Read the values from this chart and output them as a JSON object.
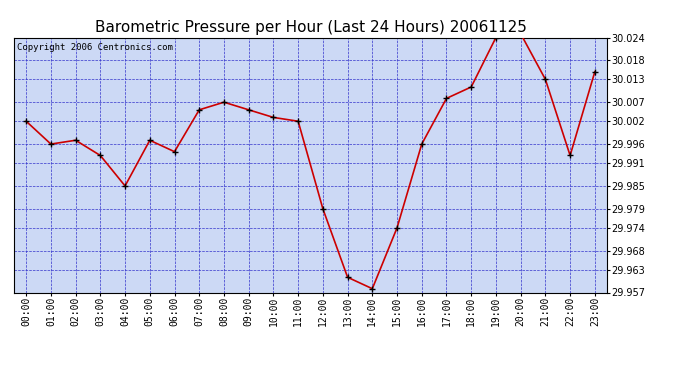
{
  "title": "Barometric Pressure per Hour (Last 24 Hours) 20061125",
  "copyright": "Copyright 2006 Centronics.com",
  "hours": [
    "00:00",
    "01:00",
    "02:00",
    "03:00",
    "04:00",
    "05:00",
    "06:00",
    "07:00",
    "08:00",
    "09:00",
    "10:00",
    "11:00",
    "12:00",
    "13:00",
    "14:00",
    "15:00",
    "16:00",
    "17:00",
    "18:00",
    "19:00",
    "20:00",
    "21:00",
    "22:00",
    "23:00"
  ],
  "values": [
    30.002,
    29.996,
    29.997,
    29.993,
    29.985,
    29.997,
    29.994,
    30.005,
    30.007,
    30.005,
    30.003,
    30.002,
    29.979,
    29.961,
    29.958,
    29.974,
    29.996,
    30.008,
    30.011,
    30.024,
    30.025,
    30.013,
    29.993,
    30.015
  ],
  "ylim_min": 29.957,
  "ylim_max": 30.024,
  "yticks": [
    29.957,
    29.963,
    29.968,
    29.974,
    29.979,
    29.985,
    29.991,
    29.996,
    30.002,
    30.007,
    30.013,
    30.018,
    30.024
  ],
  "line_color": "#cc0000",
  "marker_color": "#000000",
  "plot_bg_color": "#ccd9f5",
  "grid_color": "#3333cc",
  "title_color": "#000000",
  "title_fontsize": 11,
  "copyright_fontsize": 6.5,
  "tick_fontsize": 7
}
